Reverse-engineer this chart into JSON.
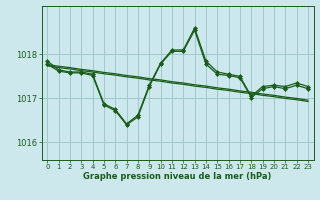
{
  "background_color": "#cde8ec",
  "grid_color": "#a0c8cc",
  "line_color": "#1a5c1a",
  "xlabel": "Graphe pression niveau de la mer (hPa)",
  "xlim": [
    -0.5,
    23.5
  ],
  "ylim": [
    1015.6,
    1019.1
  ],
  "yticks": [
    1016,
    1017,
    1018
  ],
  "xticks": [
    0,
    1,
    2,
    3,
    4,
    5,
    6,
    7,
    8,
    9,
    10,
    11,
    12,
    13,
    14,
    15,
    16,
    17,
    18,
    19,
    20,
    21,
    22,
    23
  ],
  "hours": [
    0,
    1,
    2,
    3,
    4,
    5,
    6,
    7,
    8,
    9,
    10,
    11,
    12,
    13,
    14,
    15,
    16,
    17,
    18,
    19,
    20,
    21,
    22,
    23
  ],
  "zigzag1": [
    1017.85,
    1017.65,
    1017.6,
    1017.6,
    1017.55,
    1016.88,
    1016.75,
    1016.42,
    1016.62,
    1017.3,
    1017.8,
    1018.1,
    1018.1,
    1018.6,
    1017.85,
    1017.6,
    1017.55,
    1017.5,
    1017.05,
    1017.27,
    1017.3,
    1017.27,
    1017.35,
    1017.27
  ],
  "zigzag2": [
    1017.78,
    1017.62,
    1017.58,
    1017.58,
    1017.52,
    1016.85,
    1016.72,
    1016.4,
    1016.58,
    1017.27,
    1017.78,
    1018.07,
    1018.07,
    1018.55,
    1017.78,
    1017.55,
    1017.52,
    1017.47,
    1017.02,
    1017.22,
    1017.27,
    1017.22,
    1017.3,
    1017.22
  ],
  "straight1": [
    1017.77,
    1017.73,
    1017.7,
    1017.66,
    1017.63,
    1017.59,
    1017.56,
    1017.52,
    1017.49,
    1017.45,
    1017.42,
    1017.38,
    1017.35,
    1017.31,
    1017.28,
    1017.24,
    1017.21,
    1017.17,
    1017.14,
    1017.1,
    1017.07,
    1017.03,
    1017.0,
    1016.96
  ],
  "straight2": [
    1017.74,
    1017.7,
    1017.67,
    1017.63,
    1017.6,
    1017.56,
    1017.53,
    1017.49,
    1017.46,
    1017.42,
    1017.39,
    1017.35,
    1017.32,
    1017.28,
    1017.25,
    1017.21,
    1017.18,
    1017.14,
    1017.11,
    1017.07,
    1017.04,
    1017.0,
    1016.97,
    1016.93
  ]
}
